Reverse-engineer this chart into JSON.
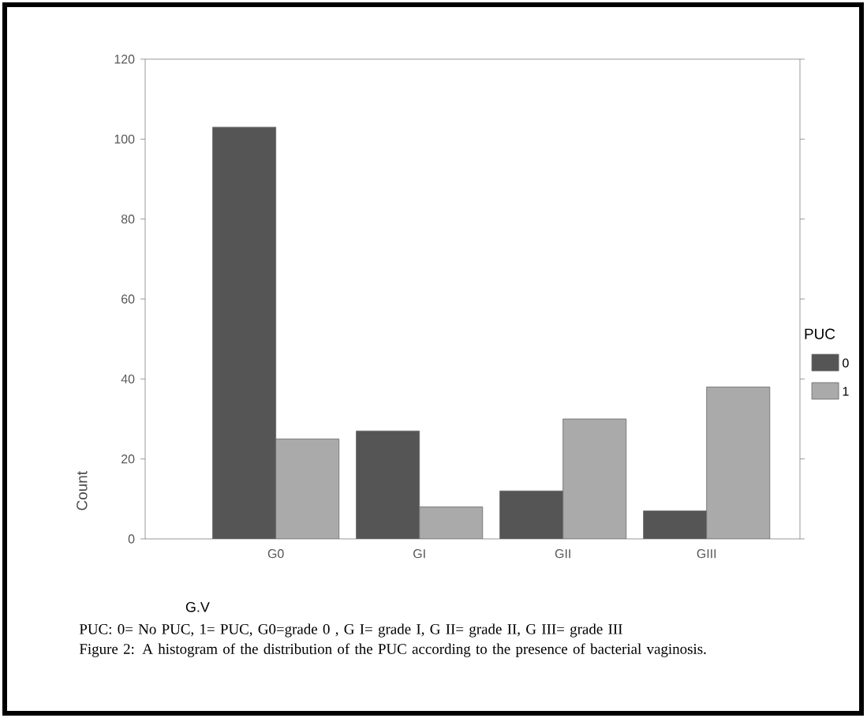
{
  "chart_data": {
    "type": "bar",
    "xlabel": "G.V",
    "ylabel": "Count",
    "legend_title": "PUC",
    "legend": "right",
    "categories": [
      "G0",
      "GI",
      "GII",
      "GIII"
    ],
    "series": [
      {
        "name": "0",
        "color": "#555555",
        "values": [
          103,
          27,
          12,
          7
        ]
      },
      {
        "name": "1",
        "color": "#aaaaaa",
        "values": [
          25,
          8,
          30,
          38
        ]
      }
    ],
    "ylim": [
      0,
      120
    ],
    "yticks": [
      0,
      20,
      40,
      60,
      80,
      100,
      120
    ],
    "annotations": [
      "PUC: 0= No PUC, 1= PUC, G0=grade 0 , G I= grade I, G II= grade II, G III= grade III",
      "Figure 2: A histogram of the distribution of the PUC according to the presence of bacterial vaginosis."
    ]
  }
}
